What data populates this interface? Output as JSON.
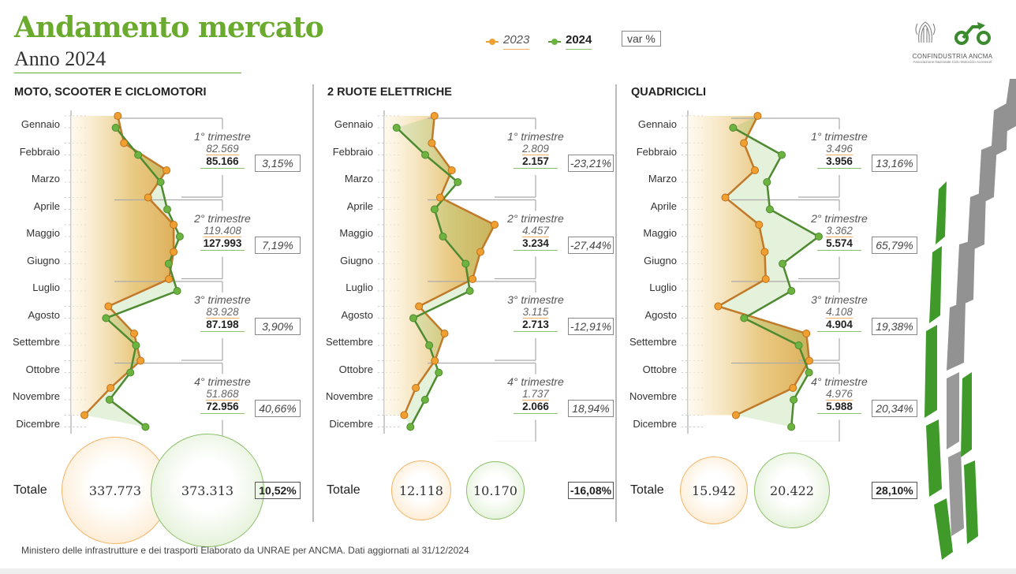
{
  "header": {
    "title": "Andamento mercato",
    "subtitle": "Anno 2024"
  },
  "legend": {
    "y2023": "2023",
    "y2024": "2024",
    "var_label": "var %"
  },
  "logo": {
    "org": "CONFINDUSTRIA  ANCMA",
    "sub": "Associazione Nazionale Ciclo Motociclo Accessori"
  },
  "colors": {
    "c2023": "#f0a030",
    "c2024": "#6db33f",
    "line2023": "#c07a2a",
    "line2024": "#4d8a30",
    "title": "#6aaa2e"
  },
  "months": [
    "Gennaio",
    "Febbraio",
    "Marzo",
    "Aprile",
    "Maggio",
    "Giugno",
    "Luglio",
    "Agosto",
    "Settembre",
    "Ottobre",
    "Novembre",
    "Dicembre"
  ],
  "panels": [
    {
      "title": "MOTO, SCOOTER E CICLOMOTORI",
      "quarters": [
        {
          "label": "1° trimestre",
          "v2023": "82.569",
          "v2024": "85.166",
          "var": "3,15%"
        },
        {
          "label": "2° trimestre",
          "v2023": "119.408",
          "v2024": "127.993",
          "var": "7,19%"
        },
        {
          "label": "3° trimestre",
          "v2023": "83.928",
          "v2024": "87.198",
          "var": "3,90%"
        },
        {
          "label": "4° trimestre",
          "v2023": "51.868",
          "v2024": "72.956",
          "var": "40,66%"
        }
      ],
      "total": {
        "label": "Totale",
        "v2023": "337.773",
        "v2024": "373.313",
        "var": "10,52%"
      }
    },
    {
      "title": "2 RUOTE ELETTRICHE",
      "quarters": [
        {
          "label": "1° trimestre",
          "v2023": "2.809",
          "v2024": "2.157",
          "var": "-23,21%"
        },
        {
          "label": "2° trimestre",
          "v2023": "4.457",
          "v2024": "3.234",
          "var": "-27,44%"
        },
        {
          "label": "3° trimestre",
          "v2023": "3.115",
          "v2024": "2.713",
          "var": "-12,91%"
        },
        {
          "label": "4° trimestre",
          "v2023": "1.737",
          "v2024": "2.066",
          "var": "18,94%"
        }
      ],
      "total": {
        "label": "Totale",
        "v2023": "12.118",
        "v2024": "10.170",
        "var": "-16,08%"
      }
    },
    {
      "title": "QUADRICICLI",
      "quarters": [
        {
          "label": "1° trimestre",
          "v2023": "3.496",
          "v2024": "3.956",
          "var": "13,16%"
        },
        {
          "label": "2° trimestre",
          "v2023": "3.362",
          "v2024": "5.574",
          "var": "65,79%"
        },
        {
          "label": "3° trimestre",
          "v2023": "4.108",
          "v2024": "4.904",
          "var": "19,38%"
        },
        {
          "label": "4° trimestre",
          "v2023": "4.976",
          "v2024": "5.988",
          "var": "20,34%"
        }
      ],
      "total": {
        "label": "Totale",
        "v2023": "15.942",
        "v2024": "20.422",
        "var": "28,10%"
      }
    }
  ],
  "chart_data": [
    {
      "type": "line",
      "title": "MOTO, SCOOTER E CICLOMOTORI",
      "orientation": "horizontal",
      "xlim": [
        0,
        56700
      ],
      "series": [
        {
          "name": "2023",
          "values": [
            19800,
            22400,
            40400,
            32600,
            43400,
            43400,
            41400,
            15800,
            26700,
            29400,
            16700,
            5700
          ]
        },
        {
          "name": "2024",
          "values": [
            18900,
            28400,
            37900,
            40700,
            46000,
            41300,
            44900,
            14800,
            27500,
            25100,
            16300,
            31500
          ]
        }
      ]
    },
    {
      "type": "line",
      "title": "2 RUOTE ELETTRICHE",
      "orientation": "horizontal",
      "xlim": [
        0,
        2275
      ],
      "series": [
        {
          "name": "2023",
          "values": [
            853,
            809,
            1147,
            950,
            1874,
            1633,
            1500,
            591,
            1024,
            860,
            537,
            340
          ]
        },
        {
          "name": "2024",
          "values": [
            211,
            697,
            1249,
            855,
            997,
            1382,
            1454,
            495,
            764,
            926,
            694,
            446
          ]
        }
      ]
    },
    {
      "type": "line",
      "title": "QUADRICICLI",
      "orientation": "horizontal",
      "xlim": [
        0,
        2430
      ],
      "series": [
        {
          "name": "2023",
          "values": [
            1265,
            1016,
            1215,
            679,
            1290,
            1393,
            1411,
            549,
            2148,
            2200,
            1905,
            871
          ]
        },
        {
          "name": "2024",
          "values": [
            820,
            1702,
            1434,
            1486,
            2372,
            1716,
            1876,
            1019,
            2009,
            2196,
            1917,
            1875
          ]
        }
      ]
    }
  ],
  "footer": "Ministero delle infrastrutture e dei trasporti Elaborato da UNRAE per ANCMA. Dati aggiornati al 31/12/2024"
}
